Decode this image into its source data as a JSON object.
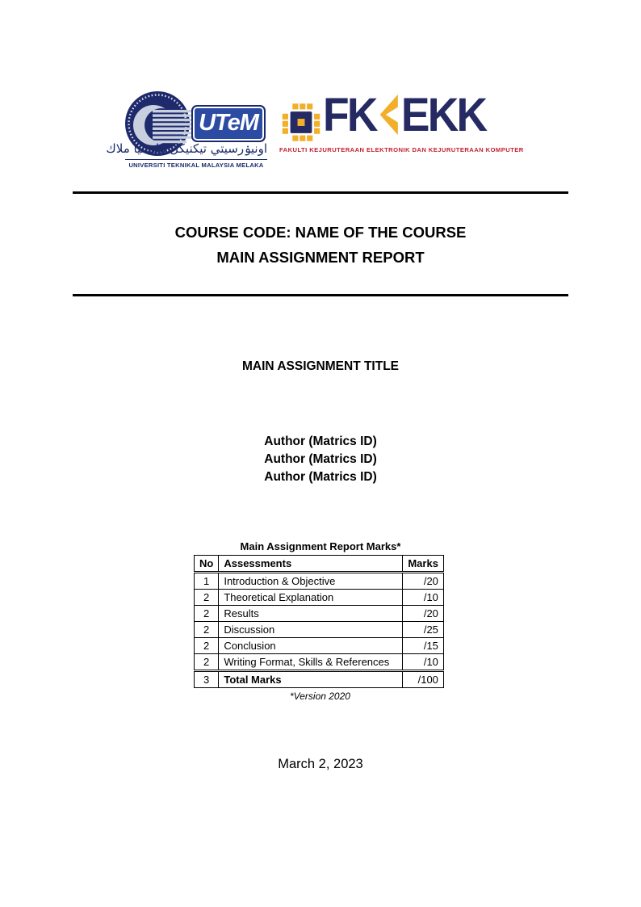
{
  "header": {
    "utem_logo": {
      "acronym": "UTeM",
      "jawi_script": "اونيۏرسيتي تيكنيكل مليسيا ملاك",
      "university_name": "UNIVERSITI TEKNIKAL MALAYSIA MELAKA"
    },
    "fkekk_logo": {
      "letters_left": "FK",
      "letters_right": "EKK",
      "faculty_name": "FAKULTI KEJURUTERAAN ELEKTRONIK DAN KEJURUTERAAN KOMPUTER"
    }
  },
  "title_block": {
    "line1": "COURSE CODE: NAME OF THE COURSE",
    "line2": "MAIN ASSIGNMENT REPORT"
  },
  "assignment_title": "MAIN ASSIGNMENT TITLE",
  "authors": [
    "Author (Matrics ID)",
    "Author (Matrics ID)",
    "Author (Matrics ID)"
  ],
  "marks_table": {
    "caption": "Main Assignment Report Marks*",
    "columns": [
      "No",
      "Assessments",
      "Marks"
    ],
    "rows": [
      {
        "no": "1",
        "assessment": "Introduction & Objective",
        "marks": "/20"
      },
      {
        "no": "2",
        "assessment": "Theoretical Explanation",
        "marks": "/10"
      },
      {
        "no": "2",
        "assessment": "Results",
        "marks": "/20"
      },
      {
        "no": "2",
        "assessment": "Discussion",
        "marks": "/25"
      },
      {
        "no": "2",
        "assessment": "Conclusion",
        "marks": "/15"
      },
      {
        "no": "2",
        "assessment": "Writing Format, Skills & References",
        "marks": "/10"
      }
    ],
    "total_row": {
      "no": "3",
      "assessment": "Total Marks",
      "marks": "/100"
    },
    "footnote": "*Version 2020"
  },
  "date": "March 2, 2023",
  "colors": {
    "utem_blue": "#2C4CA4",
    "utem_navy": "#1B2A6B",
    "emblem_silver": "#C8D0E0",
    "fkekk_navy": "#252A63",
    "fkekk_yellow": "#F2AF29",
    "fkekk_red": "#C41E2F"
  }
}
